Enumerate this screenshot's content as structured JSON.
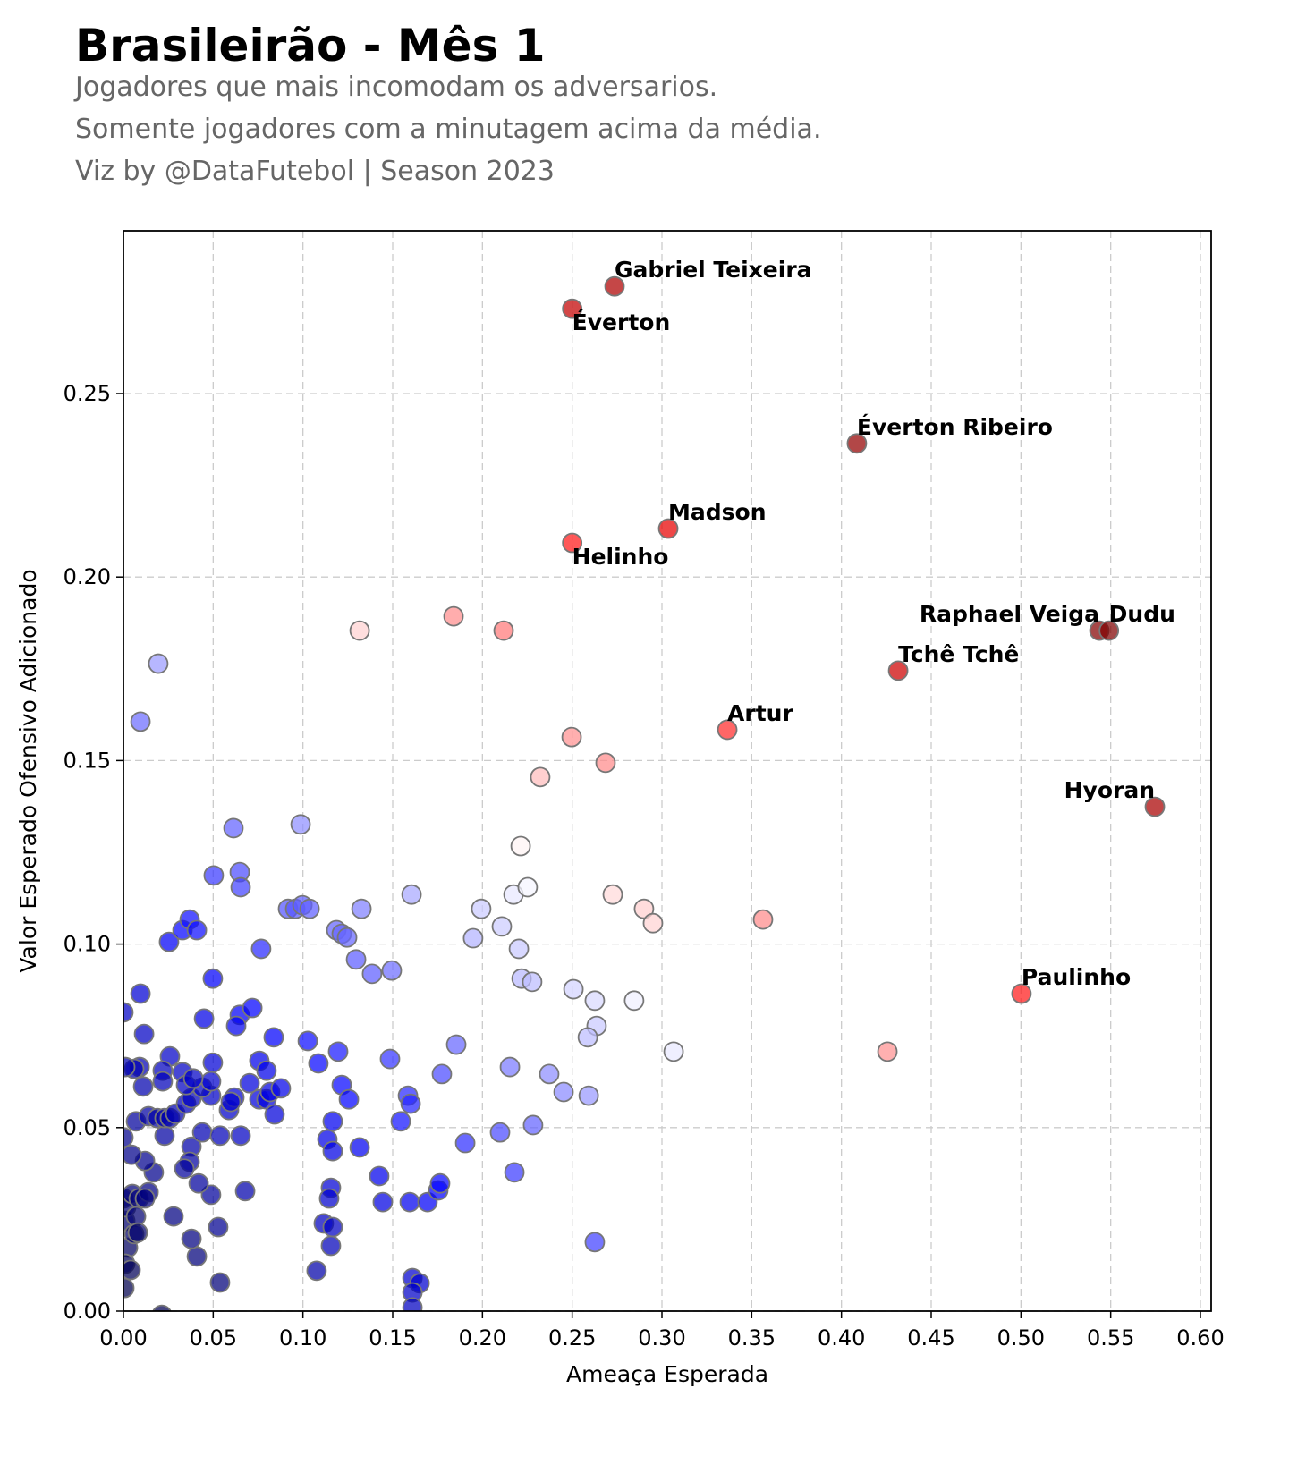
{
  "chart_data": {
    "type": "scatter",
    "title": "Brasileirão - Mês 1",
    "subtitles": [
      "Jogadores que mais incomodam os adversarios.",
      "Somente jogadores com a minutagem acima da média.",
      "Viz by @DataFutebol | Season 2023"
    ],
    "xlabel": "Ameaça Esperada",
    "ylabel": "Valor Esperado Ofensivo Adicionado",
    "xlim": [
      0,
      0.606
    ],
    "ylim": [
      0,
      0.294
    ],
    "xticks": [
      "0.00",
      "0.05",
      "0.10",
      "0.15",
      "0.20",
      "0.25",
      "0.30",
      "0.35",
      "0.40",
      "0.45",
      "0.50",
      "0.55",
      "0.60"
    ],
    "yticks": [
      "0.00",
      "0.05",
      "0.10",
      "0.15",
      "0.20",
      "0.25"
    ],
    "grid": true,
    "colormap": "seismic",
    "annotations": [
      {
        "name": "Gabriel Teixeira",
        "x": 0.2736,
        "y": 0.2792
      },
      {
        "name": "Éverton",
        "x": 0.25,
        "y": 0.2731
      },
      {
        "name": "Éverton Ribeiro",
        "x": 0.4086,
        "y": 0.2364
      },
      {
        "name": "Madson",
        "x": 0.3035,
        "y": 0.2132
      },
      {
        "name": "Helinho",
        "x": 0.25,
        "y": 0.2093
      },
      {
        "name": "Raphael Veiga",
        "x": 0.5437,
        "y": 0.1854
      },
      {
        "name": "Dudu",
        "x": 0.549,
        "y": 0.1854
      },
      {
        "name": "Tchê Tchê",
        "x": 0.4316,
        "y": 0.1745
      },
      {
        "name": "Artur",
        "x": 0.3364,
        "y": 0.1584
      },
      {
        "name": "Hyoran",
        "x": 0.5746,
        "y": 0.1374
      },
      {
        "name": "Paulinho",
        "x": 0.5003,
        "y": 0.0865
      }
    ],
    "points": [
      [
        0.1839,
        0.1893
      ],
      [
        0.2118,
        0.1854
      ],
      [
        0.1316,
        0.1854
      ],
      [
        0.0194,
        0.1764
      ],
      [
        0.0095,
        0.1606
      ],
      [
        0.2497,
        0.1564
      ],
      [
        0.2686,
        0.1494
      ],
      [
        0.2322,
        0.1455
      ],
      [
        0.0613,
        0.1316
      ],
      [
        0.0987,
        0.1326
      ],
      [
        0.2213,
        0.1267
      ],
      [
        0.0503,
        0.1187
      ],
      [
        0.0648,
        0.1196
      ],
      [
        0.0653,
        0.1155
      ],
      [
        0.1605,
        0.1135
      ],
      [
        0.2173,
        0.1135
      ],
      [
        0.2252,
        0.1155
      ],
      [
        0.2726,
        0.1135
      ],
      [
        0.29,
        0.1096
      ],
      [
        0.295,
        0.1057
      ],
      [
        0.3563,
        0.1067
      ],
      [
        0.1993,
        0.1096
      ],
      [
        0.2108,
        0.1048
      ],
      [
        0.1948,
        0.1016
      ],
      [
        0.2203,
        0.0987
      ],
      [
        0.0917,
        0.1096
      ],
      [
        0.0957,
        0.1096
      ],
      [
        0.0997,
        0.1106
      ],
      [
        0.1037,
        0.1096
      ],
      [
        0.1326,
        0.1096
      ],
      [
        0.1186,
        0.1038
      ],
      [
        0.1216,
        0.1028
      ],
      [
        0.1246,
        0.1018
      ],
      [
        0.1296,
        0.0958
      ],
      [
        0.1385,
        0.0919
      ],
      [
        0.1495,
        0.0928
      ],
      [
        0.0254,
        0.1006
      ],
      [
        0.0329,
        0.1038
      ],
      [
        0.0369,
        0.1067
      ],
      [
        0.0409,
        0.1038
      ],
      [
        0.0767,
        0.0987
      ],
      [
        0.0498,
        0.0906
      ],
      [
        0.2218,
        0.0906
      ],
      [
        0.2277,
        0.0897
      ],
      [
        0.2507,
        0.0877
      ],
      [
        0.2626,
        0.0846
      ],
      [
        0.2845,
        0.0846
      ],
      [
        0.2636,
        0.0777
      ],
      [
        0.2587,
        0.0746
      ],
      [
        0.3065,
        0.0707
      ],
      [
        0.4256,
        0.0707
      ],
      [
        0.0095,
        0.0865
      ],
      [
        0.0115,
        0.0755
      ],
      [
        0.0449,
        0.0797
      ],
      [
        0.0648,
        0.0807
      ],
      [
        0.0718,
        0.0826
      ],
      [
        0.0628,
        0.0777
      ],
      [
        0.0837,
        0.0746
      ],
      [
        0.1027,
        0.0736
      ],
      [
        0.1854,
        0.0726
      ],
      [
        0.2153,
        0.0665
      ],
      [
        0.2372,
        0.0646
      ],
      [
        0.2452,
        0.0597
      ],
      [
        0.2592,
        0.0587
      ],
      [
        0.2282,
        0.0507
      ],
      [
        0.2098,
        0.0487
      ],
      [
        0.1904,
        0.0458
      ],
      [
        0.2178,
        0.0378
      ],
      [
        0.2626,
        0.0188
      ],
      [
        0.1086,
        0.0675
      ],
      [
        0.1196,
        0.0707
      ],
      [
        0.1216,
        0.0616
      ],
      [
        0.1256,
        0.0577
      ],
      [
        0.1485,
        0.0687
      ],
      [
        0.1774,
        0.0646
      ],
      [
        0.1585,
        0.0587
      ],
      [
        0.16,
        0.0565
      ],
      [
        0.1545,
        0.0517
      ],
      [
        0.1166,
        0.0517
      ],
      [
        0.1316,
        0.0446
      ],
      [
        0.1136,
        0.0468
      ],
      [
        0.1166,
        0.0436
      ],
      [
        0.1425,
        0.0368
      ],
      [
        0.1445,
        0.0297
      ],
      [
        0.1595,
        0.0297
      ],
      [
        0.1694,
        0.0297
      ],
      [
        0.1754,
        0.0329
      ],
      [
        0.1764,
        0.0348
      ],
      [
        0.1156,
        0.0336
      ],
      [
        0.1146,
        0.0307
      ],
      [
        0.1116,
        0.0239
      ],
      [
        0.1166,
        0.0229
      ],
      [
        0.1156,
        0.0178
      ],
      [
        0.1076,
        0.011
      ],
      [
        0.161,
        0.009
      ],
      [
        0.165,
        0.0076
      ],
      [
        0.161,
        0.0051
      ],
      [
        0.161,
        0.001
      ],
      [
        0.0214,
        -0.001
      ],
      [
        0.0538,
        0.0078
      ],
      [
        0.0409,
        0.0149
      ],
      [
        0.0379,
        0.0197
      ],
      [
        0.0279,
        0.0258
      ],
      [
        0.0678,
        0.0327
      ],
      [
        0.0488,
        0.0317
      ],
      [
        0.0419,
        0.0348
      ],
      [
        0.0528,
        0.0229
      ],
      [
        0.0379,
        0.0448
      ],
      [
        0.0369,
        0.0407
      ],
      [
        0.0339,
        0.0388
      ],
      [
        0.0169,
        0.0378
      ],
      [
        0.012,
        0.0409
      ],
      [
        0.0045,
        0.0426
      ],
      [
        0.0439,
        0.0487
      ],
      [
        0.0538,
        0.0478
      ],
      [
        0.0653,
        0.0478
      ],
      [
        0.0229,
        0.0478
      ],
      [
        0.007,
        0.0517
      ],
      [
        0.014,
        0.0531
      ],
      [
        0.0189,
        0.0526
      ],
      [
        0.0229,
        0.0526
      ],
      [
        0.0259,
        0.0526
      ],
      [
        0.0289,
        0.0538
      ],
      [
        0.0349,
        0.0565
      ],
      [
        0.0379,
        0.058
      ],
      [
        0.0488,
        0.0587
      ],
      [
        0.0439,
        0.0609
      ],
      [
        0.0588,
        0.0548
      ],
      [
        0.0618,
        0.0582
      ],
      [
        0.0598,
        0.057
      ],
      [
        0.0703,
        0.0621
      ],
      [
        0.0757,
        0.0577
      ],
      [
        0.0797,
        0.0577
      ],
      [
        0.0817,
        0.0597
      ],
      [
        0.0842,
        0.0536
      ],
      [
        0.0877,
        0.0607
      ],
      [
        0.0757,
        0.0682
      ],
      [
        0.0797,
        0.0655
      ],
      [
        0.0498,
        0.0677
      ],
      [
        0.0488,
        0.0626
      ],
      [
        0.0329,
        0.0651
      ],
      [
        0.0349,
        0.0616
      ],
      [
        0.0389,
        0.0634
      ],
      [
        0.0259,
        0.0694
      ],
      [
        0.0219,
        0.0655
      ],
      [
        0.0219,
        0.0626
      ],
      [
        0.009,
        0.0665
      ],
      [
        0.011,
        0.0612
      ],
      [
        0.006,
        0.066
      ],
      [
        0.0,
        0.0814
      ],
      [
        0.001,
        0.0665
      ],
      [
        0.0,
        0.0473
      ],
      [
        0.0,
        0.0307
      ],
      [
        0.001,
        0.0246
      ],
      [
        0.0025,
        0.0173
      ],
      [
        0.001,
        0.0129
      ],
      [
        0.0005,
        0.0063
      ],
      [
        0.0015,
        0.0283
      ],
      [
        0.005,
        0.0319
      ],
      [
        0.0085,
        0.0307
      ],
      [
        0.007,
        0.0258
      ],
      [
        0.006,
        0.021
      ],
      [
        0.004,
        0.0112
      ],
      [
        0.014,
        0.0324
      ],
      [
        0.012,
        0.0307
      ],
      [
        0.008,
        0.0214
      ]
    ]
  }
}
